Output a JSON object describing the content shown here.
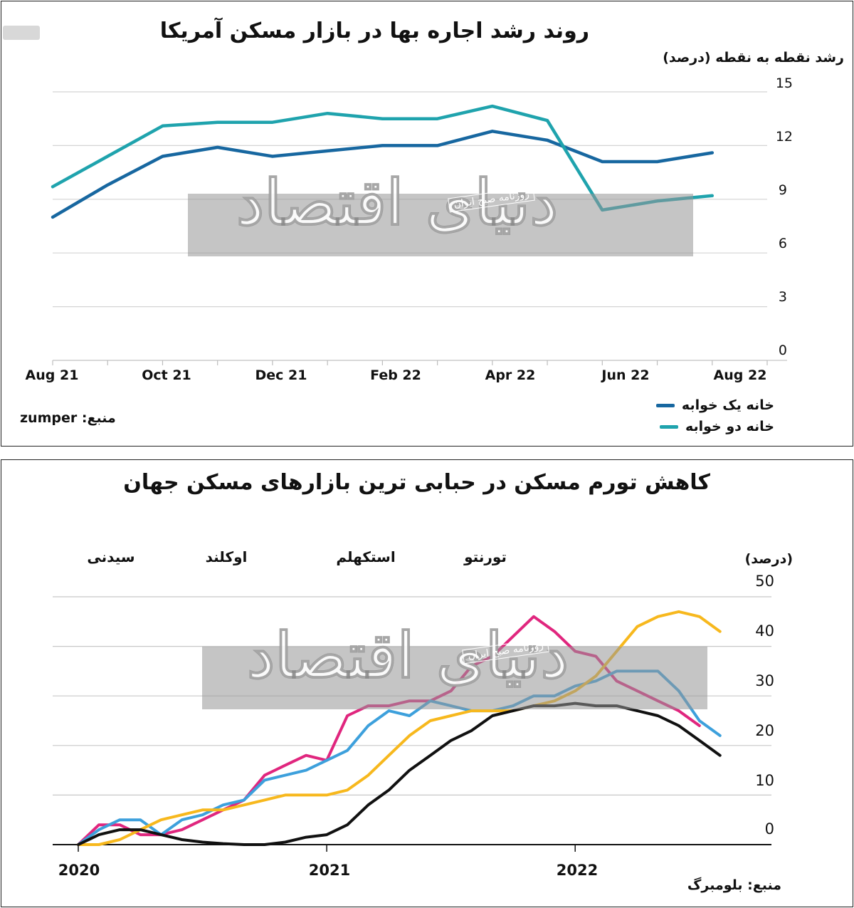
{
  "chart_data": [
    {
      "type": "line",
      "title": "روند رشد اجاره بها در بازار مسکن آمریکا",
      "ylabel": "رشد نقطه به نقطه (درصد)",
      "ylim": [
        0,
        15
      ],
      "yticks": [
        "15",
        "12",
        "9",
        "6",
        "3",
        "0"
      ],
      "xtick_labels": [
        "Aug 21",
        "Oct 21",
        "Dec 21",
        "Feb 22",
        "Apr 22",
        "Jun 22",
        "Aug 22"
      ],
      "x": [
        0,
        1,
        2,
        3,
        4,
        5,
        6,
        7,
        8,
        9,
        10,
        11,
        12,
        13
      ],
      "series": [
        {
          "name": "خانه یک خوابه",
          "color": "#1767a0",
          "values": [
            8.0,
            9.8,
            11.4,
            11.9,
            11.4,
            11.7,
            12.0,
            12.0,
            12.8,
            12.3,
            11.1,
            11.1,
            11.6,
            null
          ]
        },
        {
          "name": "خانه دو خوابه",
          "color": "#1fa3ad",
          "values": [
            9.7,
            11.4,
            13.1,
            13.3,
            13.3,
            13.8,
            13.5,
            13.5,
            14.2,
            13.4,
            8.4,
            8.9,
            9.2,
            null
          ]
        }
      ],
      "grid": true,
      "legend_position": "bottom-right",
      "source": "منبع: zumper"
    },
    {
      "type": "line",
      "title": "کاهش تورم مسکن در حبابی ترین بازارهای مسکن جهان",
      "ylabel": "(درصد)",
      "ylim": [
        0,
        50
      ],
      "yticks": [
        "50",
        "40",
        "30",
        "20",
        "10",
        "0"
      ],
      "xtick_labels": [
        "2020",
        "2021",
        "2022"
      ],
      "series": [
        {
          "name": "تورنتو",
          "color": "#e0267e",
          "x": [
            2020.0,
            2020.083,
            2020.167,
            2020.25,
            2020.333,
            2020.417,
            2020.5,
            2020.583,
            2020.667,
            2020.75,
            2020.833,
            2020.917,
            2021.0,
            2021.083,
            2021.167,
            2021.25,
            2021.333,
            2021.417,
            2021.5,
            2021.583,
            2021.667,
            2021.75,
            2021.833,
            2021.917,
            2022.0,
            2022.083,
            2022.167,
            2022.25,
            2022.333,
            2022.417,
            2022.5
          ],
          "y": [
            0,
            4,
            4,
            2,
            2,
            3,
            5,
            7,
            9,
            14,
            16,
            18,
            17,
            26,
            28,
            28,
            29,
            29,
            31,
            36,
            38,
            42,
            46,
            43,
            39,
            38,
            33,
            31,
            29,
            27,
            24
          ]
        },
        {
          "name": "استکهلم",
          "color": "#3da0dc",
          "x": [
            2020.0,
            2020.083,
            2020.167,
            2020.25,
            2020.333,
            2020.417,
            2020.5,
            2020.583,
            2020.667,
            2020.75,
            2020.833,
            2020.917,
            2021.0,
            2021.083,
            2021.167,
            2021.25,
            2021.333,
            2021.417,
            2021.5,
            2021.583,
            2021.667,
            2021.75,
            2021.833,
            2021.917,
            2022.0,
            2022.083,
            2022.167,
            2022.25,
            2022.333,
            2022.417,
            2022.5,
            2022.583
          ],
          "y": [
            0,
            3,
            5,
            5,
            2,
            5,
            6,
            8,
            9,
            13,
            14,
            15,
            17,
            19,
            24,
            27,
            26,
            29,
            28,
            27,
            27,
            28,
            30,
            30,
            32,
            33,
            35,
            35,
            35,
            31,
            25,
            22
          ]
        },
        {
          "name": "اوکلند",
          "color": "#f7b81d",
          "x": [
            2020.0,
            2020.083,
            2020.167,
            2020.25,
            2020.333,
            2020.417,
            2020.5,
            2020.583,
            2020.667,
            2020.75,
            2020.833,
            2020.917,
            2021.0,
            2021.083,
            2021.167,
            2021.25,
            2021.333,
            2021.417,
            2021.5,
            2021.583,
            2021.667,
            2021.75,
            2021.833,
            2021.917,
            2022.0,
            2022.083,
            2022.167,
            2022.25,
            2022.333,
            2022.417,
            2022.5,
            2022.583
          ],
          "y": [
            0,
            0,
            1,
            3,
            5,
            6,
            7,
            7,
            8,
            9,
            10,
            10,
            10,
            11,
            14,
            18,
            22,
            25,
            26,
            27,
            27,
            27,
            28,
            29,
            31,
            34,
            39,
            44,
            46,
            47,
            46,
            43
          ]
        },
        {
          "name": "سیدنی",
          "color": "#111111",
          "x": [
            2020.0,
            2020.083,
            2020.167,
            2020.25,
            2020.333,
            2020.417,
            2020.5,
            2020.583,
            2020.667,
            2020.75,
            2020.833,
            2020.917,
            2021.0,
            2021.083,
            2021.167,
            2021.25,
            2021.333,
            2021.417,
            2021.5,
            2021.583,
            2021.667,
            2021.75,
            2021.833,
            2021.917,
            2022.0,
            2022.083,
            2022.167,
            2022.25,
            2022.333,
            2022.417,
            2022.5,
            2022.583
          ],
          "y": [
            0,
            2,
            3,
            3,
            2,
            1,
            0.5,
            0.2,
            0,
            0,
            0.5,
            1.5,
            2,
            4,
            8,
            11,
            15,
            18,
            21,
            23,
            26,
            27,
            28,
            28,
            28.5,
            28,
            28,
            27,
            26,
            24,
            21,
            18
          ]
        }
      ],
      "series_labels": [
        "تورنتو",
        "استکهلم",
        "اوکلند",
        "سیدنی"
      ],
      "grid": true,
      "source": "منبع: بلومبرگ"
    }
  ],
  "watermark": {
    "main": "دنیای اقتصاد",
    "sub": "روزنامه صبح ایران"
  }
}
